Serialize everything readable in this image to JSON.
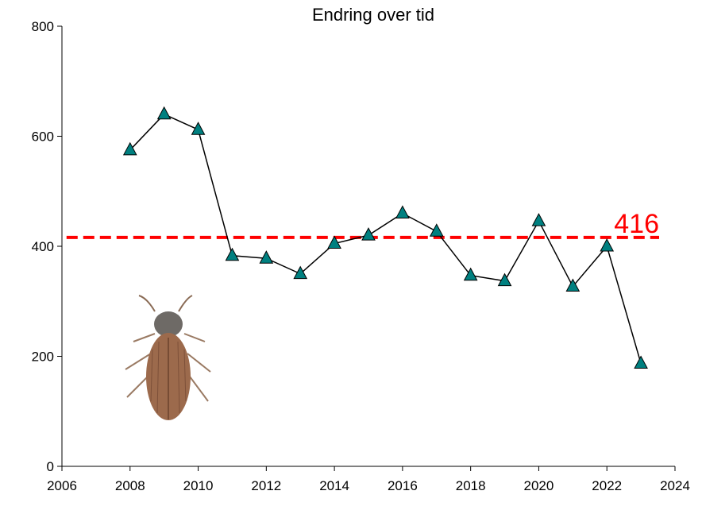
{
  "chart_data": {
    "type": "line",
    "title": "Endring over tid",
    "x": [
      2008,
      2009,
      2010,
      2011,
      2012,
      2013,
      2014,
      2015,
      2016,
      2017,
      2018,
      2019,
      2020,
      2021,
      2022,
      2023
    ],
    "series": [
      {
        "color": "#000000",
        "marker_color": "#008080",
        "marker": "triangle",
        "values": [
          575,
          640,
          612,
          383,
          378,
          350,
          405,
          420,
          460,
          427,
          347,
          337,
          446,
          327,
          400,
          187
        ]
      }
    ],
    "xlim": [
      2006,
      2024
    ],
    "xticks": [
      2006,
      2008,
      2010,
      2012,
      2014,
      2016,
      2018,
      2020,
      2022,
      2024
    ],
    "ylim": [
      0,
      800
    ],
    "yticks": [
      0,
      200,
      400,
      600,
      800
    ],
    "reference_line": {
      "value": 416,
      "color": "#ff0000"
    }
  }
}
